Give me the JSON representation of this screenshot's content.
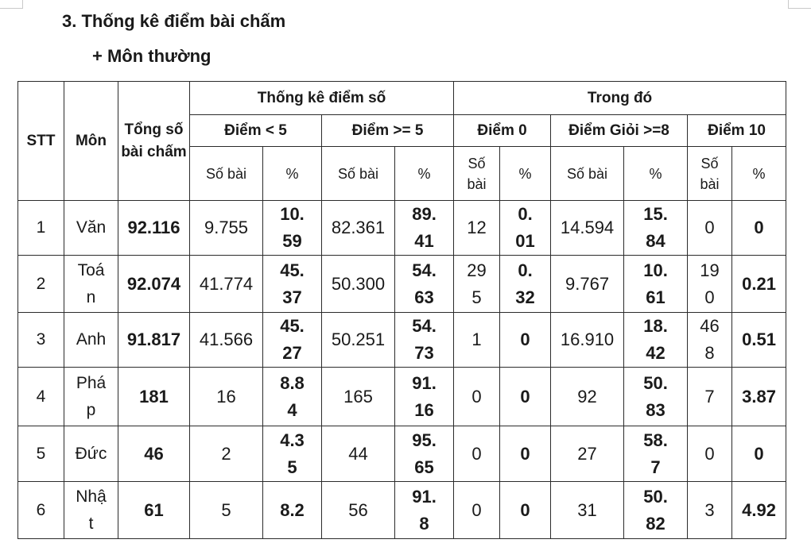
{
  "document": {
    "heading": "3. Thống kê điểm bài chấm",
    "subheading": "+ Môn thường"
  },
  "table": {
    "headers": {
      "stt": "STT",
      "mon": "Môn",
      "tong_so": "Tổng số bài chấm",
      "thong_ke": "Thống kê điểm số",
      "trong_do": "Trong đó",
      "diem_lt5": "Điểm < 5",
      "diem_ge5": "Điểm >= 5",
      "diem_0": "Điểm 0",
      "diem_gioi": "Điểm Giỏi >=8",
      "diem_10": "Điểm 10",
      "so_bai": "Số bài",
      "so_bai_stacked": "Số bài",
      "percent": "%"
    },
    "rows": [
      {
        "stt": "1",
        "mon": "Văn",
        "tong": "92.116",
        "lt5_sb": "9.755",
        "lt5_pct": "10.59",
        "ge5_sb": "82.361",
        "ge5_pct": "89.41",
        "d0_sb": "12",
        "d0_pct": "0.01",
        "gioi_sb": "14.594",
        "gioi_pct": "15.84",
        "d10_sb": "0",
        "d10_pct": "0"
      },
      {
        "stt": "2",
        "mon": "Toán",
        "tong": "92.074",
        "lt5_sb": "41.774",
        "lt5_pct": "45.37",
        "ge5_sb": "50.300",
        "ge5_pct": "54.63",
        "d0_sb": "295",
        "d0_pct": "0.32",
        "gioi_sb": "9.767",
        "gioi_pct": "10.61",
        "d10_sb": "190",
        "d10_pct": "0.21"
      },
      {
        "stt": "3",
        "mon": "Anh",
        "tong": "91.817",
        "lt5_sb": "41.566",
        "lt5_pct": "45.27",
        "ge5_sb": "50.251",
        "ge5_pct": "54.73",
        "d0_sb": "1",
        "d0_pct": "0",
        "gioi_sb": "16.910",
        "gioi_pct": "18.42",
        "d10_sb": "468",
        "d10_pct": "0.51"
      },
      {
        "stt": "4",
        "mon": "Pháp",
        "tong": "181",
        "lt5_sb": "16",
        "lt5_pct": "8.84",
        "ge5_sb": "165",
        "ge5_pct": "91.16",
        "d0_sb": "0",
        "d0_pct": "0",
        "gioi_sb": "92",
        "gioi_pct": "50.83",
        "d10_sb": "7",
        "d10_pct": "3.87"
      },
      {
        "stt": "5",
        "mon": "Đức",
        "tong": "46",
        "lt5_sb": "2",
        "lt5_pct": "4.35",
        "ge5_sb": "44",
        "ge5_pct": "95.65",
        "d0_sb": "0",
        "d0_pct": "0",
        "gioi_sb": "27",
        "gioi_pct": "58.7",
        "d10_sb": "0",
        "d10_pct": "0"
      },
      {
        "stt": "6",
        "mon": "Nhật",
        "tong": "61",
        "lt5_sb": "5",
        "lt5_pct": "8.2",
        "ge5_sb": "56",
        "ge5_pct": "91.8",
        "d0_sb": "0",
        "d0_pct": "0",
        "gioi_sb": "31",
        "gioi_pct": "50.82",
        "d10_sb": "3",
        "d10_pct": "4.92"
      }
    ]
  }
}
